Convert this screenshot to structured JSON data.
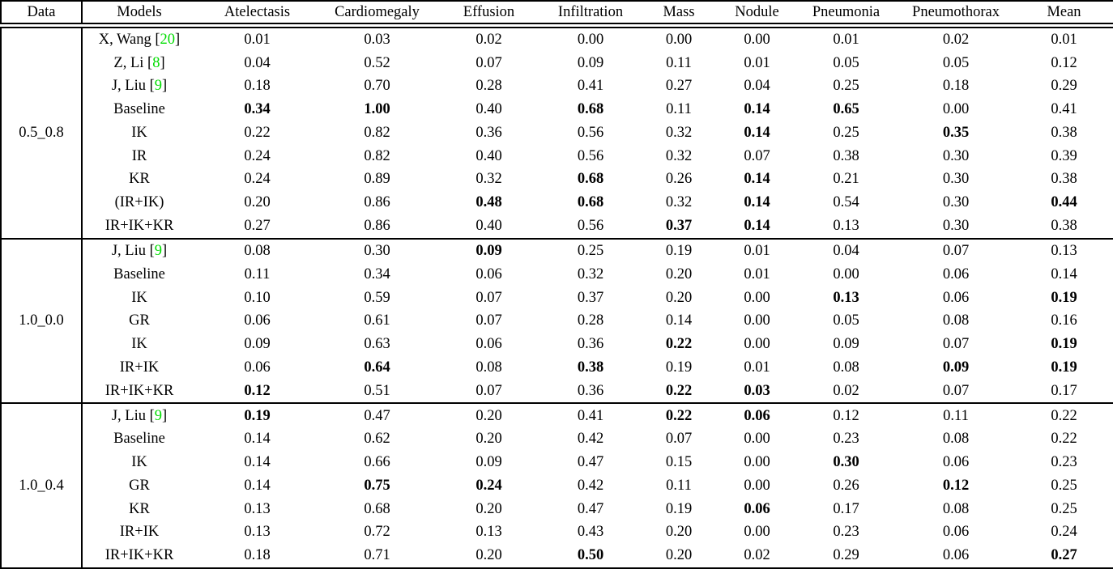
{
  "table": {
    "citation_color": "#00DD00",
    "text_color": "#000000",
    "background_color": "#FFFFFF",
    "columns": [
      "Data",
      "Models",
      "Atelectasis",
      "Cardiomegaly",
      "Effusion",
      "Infiltration",
      "Mass",
      "Nodule",
      "Pneumonia",
      "Pneumothorax",
      "Mean"
    ],
    "groups": [
      {
        "data": "0.5_0.8",
        "rows": [
          {
            "model": "X, Wang",
            "cite": "20",
            "values": [
              "0.01",
              "0.03",
              "0.02",
              "0.00",
              "0.00",
              "0.00",
              "0.01",
              "0.02",
              "0.01"
            ],
            "bold": []
          },
          {
            "model": "Z, Li",
            "cite": "8",
            "values": [
              "0.04",
              "0.52",
              "0.07",
              "0.09",
              "0.11",
              "0.01",
              "0.05",
              "0.05",
              "0.12"
            ],
            "bold": []
          },
          {
            "model": "J, Liu",
            "cite": "9",
            "values": [
              "0.18",
              "0.70",
              "0.28",
              "0.41",
              "0.27",
              "0.04",
              "0.25",
              "0.18",
              "0.29"
            ],
            "bold": []
          },
          {
            "model": "Baseline",
            "cite": null,
            "values": [
              "0.34",
              "1.00",
              "0.40",
              "0.68",
              "0.11",
              "0.14",
              "0.65",
              "0.00",
              "0.41"
            ],
            "bold": [
              0,
              1,
              3,
              5,
              6
            ]
          },
          {
            "model": "IK",
            "cite": null,
            "values": [
              "0.22",
              "0.82",
              "0.36",
              "0.56",
              "0.32",
              "0.14",
              "0.25",
              "0.35",
              "0.38"
            ],
            "bold": [
              5,
              7
            ]
          },
          {
            "model": "IR",
            "cite": null,
            "values": [
              "0.24",
              "0.82",
              "0.40",
              "0.56",
              "0.32",
              "0.07",
              "0.38",
              "0.30",
              "0.39"
            ],
            "bold": []
          },
          {
            "model": "KR",
            "cite": null,
            "values": [
              "0.24",
              "0.89",
              "0.32",
              "0.68",
              "0.26",
              "0.14",
              "0.21",
              "0.30",
              "0.38"
            ],
            "bold": [
              3,
              5
            ]
          },
          {
            "model": "(IR+IK)",
            "cite": null,
            "values": [
              "0.20",
              "0.86",
              "0.48",
              "0.68",
              "0.32",
              "0.14",
              "0.54",
              "0.30",
              "0.44"
            ],
            "bold": [
              2,
              3,
              5,
              8
            ]
          },
          {
            "model": "IR+IK+KR",
            "cite": null,
            "values": [
              "0.27",
              "0.86",
              "0.40",
              "0.56",
              "0.37",
              "0.14",
              "0.13",
              "0.30",
              "0.38"
            ],
            "bold": [
              4,
              5
            ]
          }
        ]
      },
      {
        "data": "1.0_0.0",
        "rows": [
          {
            "model": "J, Liu",
            "cite": "9",
            "values": [
              "0.08",
              "0.30",
              "0.09",
              "0.25",
              "0.19",
              "0.01",
              "0.04",
              "0.07",
              "0.13"
            ],
            "bold": [
              2
            ]
          },
          {
            "model": "Baseline",
            "cite": null,
            "values": [
              "0.11",
              "0.34",
              "0.06",
              "0.32",
              "0.20",
              "0.01",
              "0.00",
              "0.06",
              "0.14"
            ],
            "bold": []
          },
          {
            "model": "IK",
            "cite": null,
            "values": [
              "0.10",
              "0.59",
              "0.07",
              "0.37",
              "0.20",
              "0.00",
              "0.13",
              "0.06",
              "0.19"
            ],
            "bold": [
              6,
              8
            ]
          },
          {
            "model": "GR",
            "cite": null,
            "values": [
              "0.06",
              "0.61",
              "0.07",
              "0.28",
              "0.14",
              "0.00",
              "0.05",
              "0.08",
              "0.16"
            ],
            "bold": []
          },
          {
            "model": "IK",
            "cite": null,
            "values": [
              "0.09",
              "0.63",
              "0.06",
              "0.36",
              "0.22",
              "0.00",
              "0.09",
              "0.07",
              "0.19"
            ],
            "bold": [
              4,
              8
            ]
          },
          {
            "model": "IR+IK",
            "cite": null,
            "values": [
              "0.06",
              "0.64",
              "0.08",
              "0.38",
              "0.19",
              "0.01",
              "0.08",
              "0.09",
              "0.19"
            ],
            "bold": [
              1,
              3,
              7,
              8
            ]
          },
          {
            "model": "IR+IK+KR",
            "cite": null,
            "values": [
              "0.12",
              "0.51",
              "0.07",
              "0.36",
              "0.22",
              "0.03",
              "0.02",
              "0.07",
              "0.17"
            ],
            "bold": [
              0,
              4,
              5
            ]
          }
        ]
      },
      {
        "data": "1.0_0.4",
        "rows": [
          {
            "model": "J, Liu",
            "cite": "9",
            "values": [
              "0.19",
              "0.47",
              "0.20",
              "0.41",
              "0.22",
              "0.06",
              "0.12",
              "0.11",
              "0.22"
            ],
            "bold": [
              0,
              4,
              5
            ]
          },
          {
            "model": "Baseline",
            "cite": null,
            "values": [
              "0.14",
              "0.62",
              "0.20",
              "0.42",
              "0.07",
              "0.00",
              "0.23",
              "0.08",
              "0.22"
            ],
            "bold": []
          },
          {
            "model": "IK",
            "cite": null,
            "values": [
              "0.14",
              "0.66",
              "0.09",
              "0.47",
              "0.15",
              "0.00",
              "0.30",
              "0.06",
              "0.23"
            ],
            "bold": [
              6
            ]
          },
          {
            "model": "GR",
            "cite": null,
            "values": [
              "0.14",
              "0.75",
              "0.24",
              "0.42",
              "0.11",
              "0.00",
              "0.26",
              "0.12",
              "0.25"
            ],
            "bold": [
              1,
              2,
              7
            ]
          },
          {
            "model": "KR",
            "cite": null,
            "values": [
              "0.13",
              "0.68",
              "0.20",
              "0.47",
              "0.19",
              "0.06",
              "0.17",
              "0.08",
              "0.25"
            ],
            "bold": [
              5
            ]
          },
          {
            "model": "IR+IK",
            "cite": null,
            "values": [
              "0.13",
              "0.72",
              "0.13",
              "0.43",
              "0.20",
              "0.00",
              "0.23",
              "0.06",
              "0.24"
            ],
            "bold": []
          },
          {
            "model": "IR+IK+KR",
            "cite": null,
            "values": [
              "0.18",
              "0.71",
              "0.20",
              "0.50",
              "0.20",
              "0.02",
              "0.29",
              "0.06",
              "0.27"
            ],
            "bold": [
              3,
              8
            ]
          }
        ]
      }
    ]
  }
}
